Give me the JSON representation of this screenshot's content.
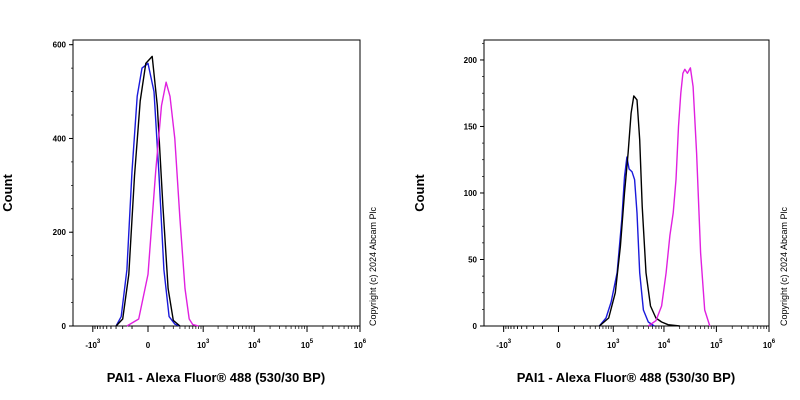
{
  "chart_data": [
    {
      "type": "histogram",
      "xlabel": "PAI1 - Alexa Fluor® 488 (530/30 BP)",
      "ylabel": "Count",
      "copyright": "Copyright (c) 2024 Abcam Plc",
      "ylim": [
        0,
        610
      ],
      "y_ticks": [
        0,
        200,
        400,
        600
      ],
      "x_scale": "biexponential",
      "x_ticks": [
        {
          "base": "-10",
          "exp": "3",
          "v": -1000
        },
        {
          "base": "0",
          "exp": "",
          "v": 0
        },
        {
          "base": "10",
          "exp": "3",
          "v": 1000
        },
        {
          "base": "10",
          "exp": "4",
          "v": 10000
        },
        {
          "base": "10",
          "exp": "5",
          "v": 100000
        },
        {
          "base": "10",
          "exp": "6",
          "v": 1000000
        }
      ],
      "series": [
        {
          "color": "#1a1adb",
          "x": [
            -300,
            -220,
            -150,
            -100,
            -60,
            -30,
            0,
            30,
            60,
            100,
            150,
            220,
            300
          ],
          "y": [
            0,
            20,
            120,
            330,
            490,
            550,
            560,
            500,
            330,
            120,
            20,
            4,
            0
          ]
        },
        {
          "color": "#000000",
          "x": [
            -300,
            -200,
            -130,
            -80,
            -40,
            -10,
            20,
            50,
            90,
            140,
            200,
            300
          ],
          "y": [
            0,
            15,
            110,
            320,
            480,
            560,
            575,
            470,
            260,
            80,
            12,
            0
          ]
        },
        {
          "color": "#e020e0",
          "x": [
            -150,
            -50,
            0,
            40,
            80,
            120,
            160,
            220,
            300,
            400,
            500,
            600,
            800
          ],
          "y": [
            0,
            15,
            110,
            330,
            470,
            520,
            490,
            400,
            230,
            80,
            15,
            3,
            0
          ]
        }
      ]
    },
    {
      "type": "histogram",
      "xlabel": "PAI1 - Alexa Fluor® 488 (530/30 BP)",
      "ylabel": "Count",
      "copyright": "Copyright (c) 2024 Abcam Plc",
      "ylim": [
        0,
        215
      ],
      "y_ticks": [
        0,
        50,
        100,
        150,
        200
      ],
      "x_scale": "biexponential",
      "x_ticks": [
        {
          "base": "-10",
          "exp": "3",
          "v": -1000
        },
        {
          "base": "0",
          "exp": "",
          "v": 0
        },
        {
          "base": "10",
          "exp": "3",
          "v": 1000
        },
        {
          "base": "10",
          "exp": "4",
          "v": 10000
        },
        {
          "base": "10",
          "exp": "5",
          "v": 100000
        },
        {
          "base": "10",
          "exp": "6",
          "v": 1000000
        }
      ],
      "series": [
        {
          "color": "#1a1adb",
          "x": [
            500,
            700,
            900,
            1200,
            1500,
            1700,
            1900,
            2100,
            2400,
            2700,
            3000,
            3400,
            4000,
            5000,
            6500
          ],
          "y": [
            0,
            6,
            18,
            40,
            80,
            112,
            127,
            118,
            116,
            110,
            85,
            40,
            12,
            3,
            0
          ]
        },
        {
          "color": "#000000",
          "x": [
            500,
            800,
            1100,
            1400,
            1700,
            2000,
            2300,
            2600,
            3000,
            3400,
            3800,
            4500,
            5500,
            7000,
            9000,
            12000,
            20000
          ],
          "y": [
            0,
            6,
            25,
            60,
            100,
            130,
            160,
            173,
            170,
            140,
            90,
            40,
            15,
            6,
            3,
            1,
            0
          ]
        },
        {
          "color": "#e020e0",
          "x": [
            5000,
            7000,
            9000,
            11000,
            13000,
            15000,
            17000,
            19000,
            21000,
            23000,
            25000,
            28000,
            32000,
            36000,
            42000,
            50000,
            60000,
            75000
          ],
          "y": [
            0,
            4,
            15,
            40,
            68,
            85,
            110,
            150,
            175,
            190,
            193,
            190,
            194,
            180,
            130,
            55,
            12,
            0
          ]
        }
      ]
    }
  ]
}
